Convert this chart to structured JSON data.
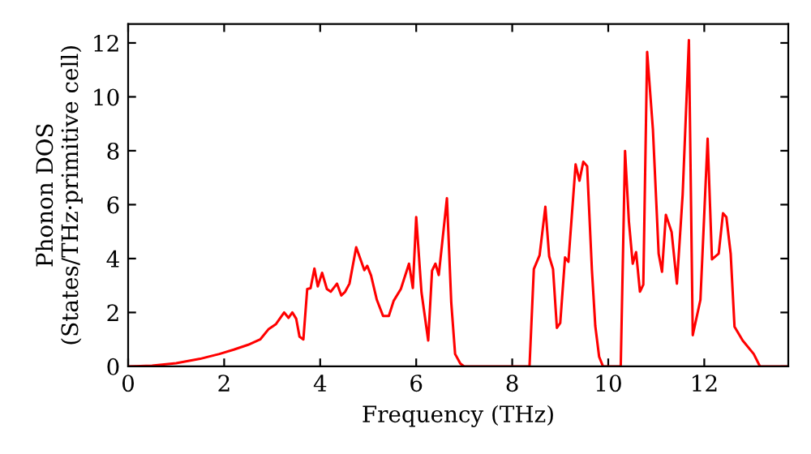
{
  "chart_data": {
    "type": "line",
    "xlabel": "Frequency (THz)",
    "ylabel": "Phonon DOS\n(States/THz·primitive cell)",
    "xlim": [
      0,
      13.75
    ],
    "ylim": [
      0,
      12.7
    ],
    "xticks": [
      0,
      2,
      4,
      6,
      8,
      10,
      12
    ],
    "yticks": [
      0,
      2,
      4,
      6,
      8,
      10,
      12
    ],
    "grid": false,
    "marker": "none",
    "line_style": "solid",
    "series": [
      {
        "color": "#ff0000",
        "x": [
          0,
          0.5,
          1.0,
          1.5,
          1.9,
          2.2,
          2.5,
          2.75,
          2.92,
          3.08,
          3.25,
          3.34,
          3.42,
          3.5,
          3.57,
          3.65,
          3.73,
          3.8,
          3.88,
          3.95,
          4.04,
          4.14,
          4.22,
          4.35,
          4.44,
          4.52,
          4.61,
          4.75,
          4.92,
          4.98,
          5.06,
          5.18,
          5.31,
          5.43,
          5.53,
          5.68,
          5.85,
          5.93,
          6.0,
          6.11,
          6.25,
          6.33,
          6.4,
          6.47,
          6.64,
          6.73,
          6.81,
          6.92,
          7.0,
          8.36,
          8.45,
          8.57,
          8.69,
          8.77,
          8.85,
          8.93,
          9.0,
          9.1,
          9.17,
          9.32,
          9.4,
          9.48,
          9.56,
          9.66,
          9.73,
          9.81,
          9.89,
          10.26,
          10.35,
          10.43,
          10.51,
          10.58,
          10.66,
          10.73,
          10.81,
          10.93,
          11.05,
          11.12,
          11.2,
          11.32,
          11.43,
          11.55,
          11.68,
          11.76,
          11.92,
          12.07,
          12.16,
          12.3,
          12.39,
          12.46,
          12.55,
          12.63,
          12.8,
          13.03,
          13.16,
          13.75
        ],
        "values": [
          0,
          0.03,
          0.12,
          0.28,
          0.46,
          0.62,
          0.8,
          1.0,
          1.37,
          1.57,
          2.0,
          1.8,
          2.0,
          1.77,
          1.1,
          1.0,
          2.87,
          2.9,
          3.63,
          2.97,
          3.47,
          2.87,
          2.77,
          3.07,
          2.63,
          2.77,
          3.07,
          4.42,
          3.57,
          3.73,
          3.37,
          2.47,
          1.87,
          1.87,
          2.43,
          2.87,
          3.81,
          2.91,
          5.54,
          2.75,
          0.96,
          3.55,
          3.81,
          3.39,
          6.24,
          2.37,
          0.46,
          0.1,
          0,
          0,
          3.61,
          4.12,
          5.92,
          4.08,
          3.61,
          1.43,
          1.61,
          4.04,
          3.88,
          7.49,
          6.89,
          7.59,
          7.43,
          3.57,
          1.5,
          0.36,
          0,
          0,
          7.99,
          5.38,
          3.81,
          4.24,
          2.77,
          3.03,
          11.67,
          8.8,
          4.18,
          3.51,
          5.62,
          4.98,
          3.07,
          6.38,
          12.1,
          1.16,
          2.47,
          8.45,
          3.97,
          4.18,
          5.68,
          5.54,
          4.18,
          1.47,
          0.96,
          0.46,
          0,
          0
        ]
      }
    ]
  }
}
